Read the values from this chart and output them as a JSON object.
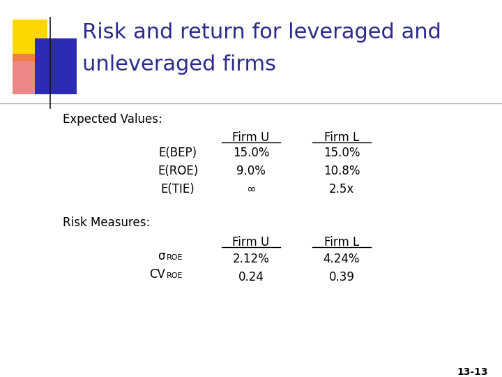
{
  "title_line1": "Risk and return for leveraged and",
  "title_line2": "unleveraged firms",
  "title_color": "#2B2B8B",
  "background_color": "#FFFFFF",
  "section1_label": "Expected Values:",
  "col_header_firm_u": "Firm U",
  "col_header_firm_l": "Firm L",
  "rows_expected": [
    {
      "label": "E(BEP)",
      "firm_u": "15.0%",
      "firm_l": "15.0%"
    },
    {
      "label": "E(ROE)",
      "firm_u": "9.0%",
      "firm_l": "10.8%"
    },
    {
      "label": "E(TIE)",
      "firm_u": "∞",
      "firm_l": "2.5x"
    }
  ],
  "section2_label": "Risk Measures:",
  "rows_risk": [
    {
      "label_main": "σ",
      "label_sub": "ROE",
      "firm_u": "2.12%",
      "firm_l": "4.24%"
    },
    {
      "label_main": "CV",
      "label_sub": "ROE",
      "firm_u": "0.24",
      "firm_l": "0.39"
    }
  ],
  "page_number": "13-13",
  "yellow_color": "#FFD700",
  "red_color": "#E86060",
  "blue_color": "#2B2BB5",
  "divider_color": "#AAAACC",
  "text_color": "#000000",
  "title_fontsize": 22,
  "body_fontsize": 12,
  "sub_fontsize": 8
}
